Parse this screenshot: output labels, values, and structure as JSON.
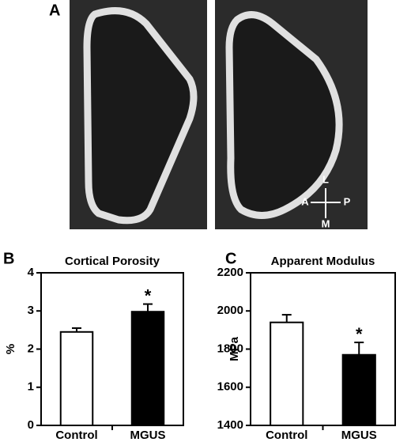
{
  "panels": {
    "a": "A",
    "b": "B",
    "c": "C"
  },
  "orientation": {
    "up": "L",
    "left": "A",
    "right": "P",
    "down": "M"
  },
  "chart_data": [
    {
      "type": "bar",
      "title": "Cortical Porosity",
      "y_label": "%",
      "categories": [
        "Control",
        "MGUS"
      ],
      "values": [
        2.45,
        2.98
      ],
      "errors": [
        0.1,
        0.2
      ],
      "colors": [
        "#ffffff",
        "#000000"
      ],
      "ylim": [
        0,
        4
      ],
      "yticks": [
        0,
        1,
        2,
        3,
        4
      ],
      "annotations": [
        {
          "text": "*",
          "x": "MGUS"
        }
      ]
    },
    {
      "type": "bar",
      "title": "Apparent Modulus",
      "y_label": "MPa",
      "categories": [
        "Control",
        "MGUS"
      ],
      "values": [
        1940,
        1770
      ],
      "errors": [
        40,
        65
      ],
      "colors": [
        "#ffffff",
        "#000000"
      ],
      "ylim": [
        1400,
        2200
      ],
      "yticks": [
        1400,
        1600,
        1800,
        2000,
        2200
      ],
      "annotations": [
        {
          "text": "*",
          "x": "MGUS"
        }
      ]
    }
  ]
}
